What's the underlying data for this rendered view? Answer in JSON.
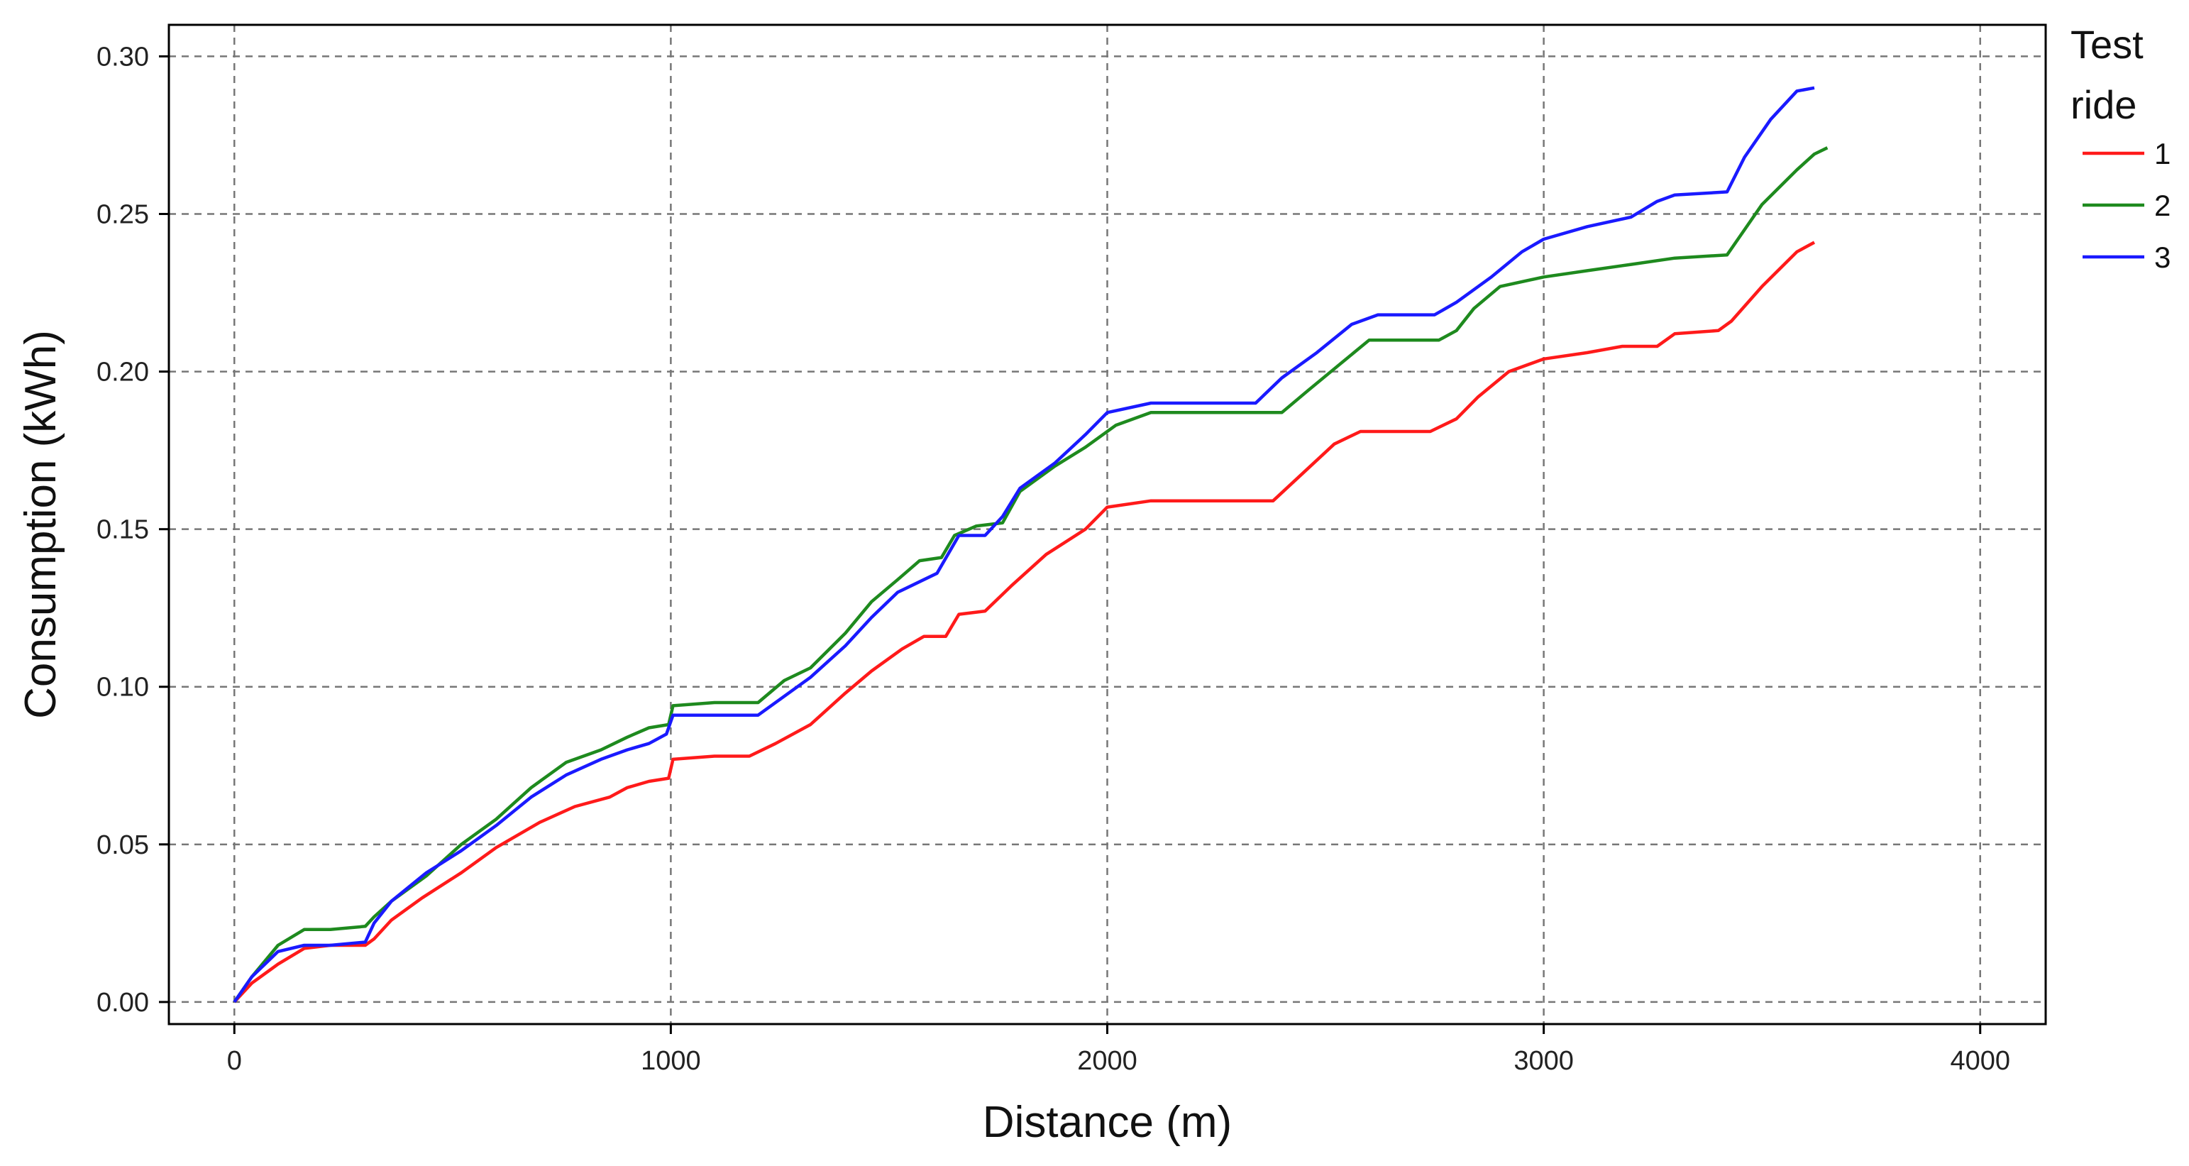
{
  "chart_data": {
    "type": "line",
    "xlabel": "Distance (m)",
    "ylabel": "Consumption (kWh)",
    "xlim": [
      -150,
      4150
    ],
    "ylim": [
      -0.007,
      0.31
    ],
    "xticks": [
      0,
      1000,
      2000,
      3000,
      4000
    ],
    "yticks": [
      0.0,
      0.05,
      0.1,
      0.15,
      0.2,
      0.25,
      0.3
    ],
    "ytick_labels": [
      "0.00",
      "0.05",
      "0.10",
      "0.15",
      "0.20",
      "0.25",
      "0.30"
    ],
    "grid": true,
    "legend": {
      "title": "Test ride",
      "position": "right-top"
    },
    "series": [
      {
        "name": "1",
        "color": "#ff1a1a",
        "points": [
          [
            0,
            0.0
          ],
          [
            40,
            0.006
          ],
          [
            100,
            0.012
          ],
          [
            160,
            0.017
          ],
          [
            220,
            0.018
          ],
          [
            300,
            0.018
          ],
          [
            320,
            0.02
          ],
          [
            360,
            0.026
          ],
          [
            430,
            0.033
          ],
          [
            520,
            0.041
          ],
          [
            600,
            0.049
          ],
          [
            700,
            0.057
          ],
          [
            780,
            0.062
          ],
          [
            860,
            0.065
          ],
          [
            900,
            0.068
          ],
          [
            950,
            0.07
          ],
          [
            995,
            0.071
          ],
          [
            1005,
            0.077
          ],
          [
            1100,
            0.078
          ],
          [
            1180,
            0.078
          ],
          [
            1240,
            0.082
          ],
          [
            1320,
            0.088
          ],
          [
            1400,
            0.098
          ],
          [
            1460,
            0.105
          ],
          [
            1530,
            0.112
          ],
          [
            1580,
            0.116
          ],
          [
            1630,
            0.116
          ],
          [
            1660,
            0.123
          ],
          [
            1720,
            0.124
          ],
          [
            1780,
            0.132
          ],
          [
            1860,
            0.142
          ],
          [
            1950,
            0.15
          ],
          [
            2000,
            0.157
          ],
          [
            2100,
            0.159
          ],
          [
            2380,
            0.159
          ],
          [
            2450,
            0.168
          ],
          [
            2520,
            0.177
          ],
          [
            2580,
            0.181
          ],
          [
            2740,
            0.181
          ],
          [
            2800,
            0.185
          ],
          [
            2850,
            0.192
          ],
          [
            2920,
            0.2
          ],
          [
            3000,
            0.204
          ],
          [
            3100,
            0.206
          ],
          [
            3180,
            0.208
          ],
          [
            3260,
            0.208
          ],
          [
            3300,
            0.212
          ],
          [
            3400,
            0.213
          ],
          [
            3430,
            0.216
          ],
          [
            3500,
            0.227
          ],
          [
            3580,
            0.238
          ],
          [
            3620,
            0.241
          ]
        ]
      },
      {
        "name": "2",
        "color": "#1e8a1e",
        "points": [
          [
            0,
            0.0
          ],
          [
            40,
            0.008
          ],
          [
            100,
            0.018
          ],
          [
            160,
            0.023
          ],
          [
            220,
            0.023
          ],
          [
            300,
            0.024
          ],
          [
            320,
            0.027
          ],
          [
            360,
            0.032
          ],
          [
            440,
            0.04
          ],
          [
            520,
            0.05
          ],
          [
            600,
            0.058
          ],
          [
            680,
            0.068
          ],
          [
            760,
            0.076
          ],
          [
            840,
            0.08
          ],
          [
            900,
            0.084
          ],
          [
            950,
            0.087
          ],
          [
            995,
            0.088
          ],
          [
            1005,
            0.094
          ],
          [
            1100,
            0.095
          ],
          [
            1200,
            0.095
          ],
          [
            1260,
            0.102
          ],
          [
            1320,
            0.106
          ],
          [
            1400,
            0.117
          ],
          [
            1460,
            0.127
          ],
          [
            1520,
            0.134
          ],
          [
            1570,
            0.14
          ],
          [
            1620,
            0.141
          ],
          [
            1650,
            0.148
          ],
          [
            1700,
            0.151
          ],
          [
            1760,
            0.152
          ],
          [
            1800,
            0.162
          ],
          [
            1880,
            0.17
          ],
          [
            1950,
            0.176
          ],
          [
            2020,
            0.183
          ],
          [
            2100,
            0.187
          ],
          [
            2400,
            0.187
          ],
          [
            2460,
            0.194
          ],
          [
            2530,
            0.202
          ],
          [
            2600,
            0.21
          ],
          [
            2760,
            0.21
          ],
          [
            2800,
            0.213
          ],
          [
            2840,
            0.22
          ],
          [
            2900,
            0.227
          ],
          [
            3000,
            0.23
          ],
          [
            3100,
            0.232
          ],
          [
            3200,
            0.234
          ],
          [
            3300,
            0.236
          ],
          [
            3420,
            0.237
          ],
          [
            3450,
            0.243
          ],
          [
            3500,
            0.253
          ],
          [
            3580,
            0.264
          ],
          [
            3620,
            0.269
          ],
          [
            3650,
            0.271
          ]
        ]
      },
      {
        "name": "3",
        "color": "#1a1aff",
        "points": [
          [
            0,
            0.0
          ],
          [
            40,
            0.008
          ],
          [
            100,
            0.016
          ],
          [
            160,
            0.018
          ],
          [
            220,
            0.018
          ],
          [
            300,
            0.019
          ],
          [
            320,
            0.025
          ],
          [
            360,
            0.032
          ],
          [
            440,
            0.041
          ],
          [
            520,
            0.048
          ],
          [
            600,
            0.056
          ],
          [
            680,
            0.065
          ],
          [
            760,
            0.072
          ],
          [
            840,
            0.077
          ],
          [
            900,
            0.08
          ],
          [
            950,
            0.082
          ],
          [
            990,
            0.085
          ],
          [
            1005,
            0.091
          ],
          [
            1100,
            0.091
          ],
          [
            1200,
            0.091
          ],
          [
            1260,
            0.097
          ],
          [
            1320,
            0.103
          ],
          [
            1400,
            0.113
          ],
          [
            1460,
            0.122
          ],
          [
            1520,
            0.13
          ],
          [
            1580,
            0.134
          ],
          [
            1610,
            0.136
          ],
          [
            1660,
            0.148
          ],
          [
            1720,
            0.148
          ],
          [
            1760,
            0.154
          ],
          [
            1800,
            0.163
          ],
          [
            1880,
            0.171
          ],
          [
            1950,
            0.18
          ],
          [
            2000,
            0.187
          ],
          [
            2100,
            0.19
          ],
          [
            2340,
            0.19
          ],
          [
            2400,
            0.198
          ],
          [
            2480,
            0.206
          ],
          [
            2560,
            0.215
          ],
          [
            2620,
            0.218
          ],
          [
            2750,
            0.218
          ],
          [
            2800,
            0.222
          ],
          [
            2880,
            0.23
          ],
          [
            2950,
            0.238
          ],
          [
            3000,
            0.242
          ],
          [
            3100,
            0.246
          ],
          [
            3200,
            0.249
          ],
          [
            3260,
            0.254
          ],
          [
            3300,
            0.256
          ],
          [
            3420,
            0.257
          ],
          [
            3460,
            0.268
          ],
          [
            3520,
            0.28
          ],
          [
            3580,
            0.289
          ],
          [
            3620,
            0.29
          ]
        ]
      }
    ]
  }
}
